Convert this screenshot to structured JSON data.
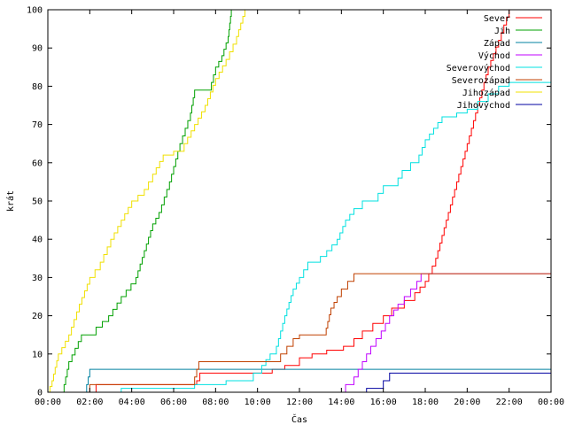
{
  "chart_data": {
    "type": "line",
    "title": "",
    "xlabel": "Čas",
    "ylabel": "krát",
    "xlim": [
      0,
      24
    ],
    "ylim": [
      0,
      100
    ],
    "x_ticks": [
      "00:00",
      "02:00",
      "04:00",
      "06:00",
      "08:00",
      "10:00",
      "12:00",
      "14:00",
      "16:00",
      "18:00",
      "20:00",
      "22:00",
      "00:00"
    ],
    "y_ticks": [
      "0",
      "10",
      "20",
      "30",
      "40",
      "50",
      "60",
      "70",
      "80",
      "90",
      "100"
    ],
    "grid": false,
    "legend_position": "top-right",
    "x_unit": "hours",
    "series": [
      {
        "name": "Sever",
        "color": "#ff0000",
        "x": [
          0,
          2.0,
          2.3,
          7.0,
          7.1,
          7.25,
          10.3,
          10.7,
          11.3,
          11.7,
          12.0,
          12.6,
          13.3,
          14.1,
          14.6,
          15.0,
          15.5,
          16.0,
          16.4,
          17.0,
          17.5,
          18.0,
          18.5,
          19.0,
          19.5,
          20.0,
          20.5,
          21.0,
          21.5,
          22.0,
          24
        ],
        "y": [
          0,
          0,
          2,
          2,
          3,
          5,
          5,
          6,
          7,
          7,
          9,
          10,
          11,
          12,
          14,
          16,
          18,
          20,
          22,
          24,
          26,
          29,
          35,
          45,
          55,
          65,
          75,
          85,
          92,
          100,
          100
        ]
      },
      {
        "name": "Jih",
        "color": "#00a000",
        "x": [
          0,
          0.7,
          1.0,
          1.6,
          2.3,
          2.9,
          3.5,
          4.2,
          4.6,
          5.0,
          5.3,
          5.8,
          6.3,
          6.8,
          7.0,
          7.7,
          8.0,
          8.3,
          8.6,
          8.75,
          24
        ],
        "y": [
          0,
          0,
          8,
          15,
          17,
          20,
          25,
          30,
          37,
          44,
          47,
          55,
          65,
          73,
          79,
          79,
          85,
          88,
          93,
          100,
          100
        ]
      },
      {
        "name": "Západ",
        "color": "#0080a0",
        "x": [
          0,
          1.7,
          1.85,
          2.0,
          24
        ],
        "y": [
          0,
          0,
          2,
          6,
          6
        ]
      },
      {
        "name": "Východ",
        "color": "#c000ff",
        "x": [
          0,
          13.9,
          14.2,
          14.6,
          15.0,
          15.4,
          15.9,
          16.3,
          16.7,
          17.0,
          17.3,
          17.6,
          17.8,
          24
        ],
        "y": [
          0,
          0,
          2,
          4,
          8,
          12,
          16,
          20,
          23,
          25,
          27,
          29,
          31,
          31
        ]
      },
      {
        "name": "Severovýchod",
        "color": "#00e0e0",
        "x": [
          0,
          3.5,
          6.8,
          7.0,
          8.2,
          8.5,
          9.8,
          10.2,
          10.6,
          10.9,
          11.3,
          11.7,
          12.0,
          12.4,
          12.7,
          13.3,
          13.8,
          14.2,
          14.6,
          15.0,
          15.5,
          16.0,
          16.5,
          16.9,
          17.3,
          17.7,
          18.0,
          18.4,
          18.8,
          19.5,
          20.0,
          20.5,
          21.0,
          21.5,
          22.0,
          24
        ],
        "y": [
          0,
          1,
          1,
          2,
          2,
          3,
          5,
          7,
          10,
          12,
          20,
          27,
          30,
          34,
          34,
          37,
          40,
          45,
          48,
          50,
          50,
          54,
          54,
          58,
          60,
          62,
          66,
          69,
          72,
          73,
          74,
          76,
          78,
          80,
          81,
          81
        ]
      },
      {
        "name": "Severozápad",
        "color": "#c04000",
        "x": [
          0,
          1.9,
          2.0,
          6.9,
          7.0,
          7.1,
          7.2,
          11.0,
          11.1,
          11.4,
          11.7,
          12.0,
          13.2,
          13.5,
          13.8,
          14.0,
          14.3,
          14.6,
          24
        ],
        "y": [
          0,
          0,
          2,
          2,
          4,
          6,
          8,
          8,
          10,
          12,
          14,
          15,
          15,
          22,
          25,
          27,
          29,
          31,
          31
        ]
      },
      {
        "name": "Jihozápad",
        "color": "#f0e000",
        "x": [
          0,
          0.2,
          0.5,
          1.0,
          1.5,
          2.0,
          2.5,
          3.0,
          3.5,
          4.0,
          4.6,
          5.0,
          5.5,
          6.0,
          6.5,
          7.0,
          7.5,
          8.0,
          8.5,
          9.0,
          9.4,
          24
        ],
        "y": [
          0,
          3,
          10,
          15,
          23,
          30,
          34,
          40,
          45,
          50,
          53,
          57,
          62,
          63,
          65,
          70,
          75,
          82,
          87,
          93,
          100,
          100
        ]
      },
      {
        "name": "Jihovýchod",
        "color": "#0000a0",
        "x": [
          0,
          14.9,
          15.2,
          15.5,
          16.0,
          16.3,
          24
        ],
        "y": [
          0,
          0,
          1,
          1,
          3,
          5,
          5
        ]
      }
    ]
  }
}
